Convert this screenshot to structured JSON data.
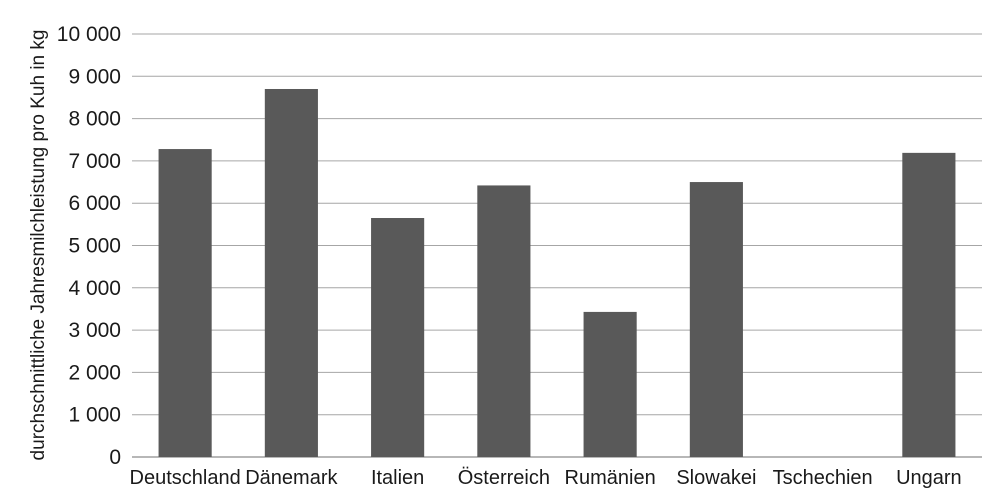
{
  "chart_data": {
    "type": "bar",
    "title": "",
    "xlabel": "",
    "ylabel": "durchschnittliche Jahresmilchleistung pro Kuh in kg",
    "categories": [
      "Deutschland",
      "Dänemark",
      "Italien",
      "Österreich",
      "Rumänien",
      "Slowakei",
      "Tschechien",
      "Ungarn"
    ],
    "values": [
      7280,
      8700,
      5650,
      6420,
      3430,
      6500,
      null,
      7190
    ],
    "ylim": [
      0,
      10000
    ],
    "yticks": [
      0,
      1000,
      2000,
      3000,
      4000,
      5000,
      6000,
      7000,
      8000,
      9000,
      10000
    ],
    "ytick_labels": [
      "0",
      "1 000",
      "2 000",
      "3 000",
      "4 000",
      "5 000",
      "6 000",
      "7 000",
      "8 000",
      "9 000",
      "10 000"
    ],
    "grid": true,
    "legend": "none",
    "bar_color": "#595959",
    "grid_color": "#a6a6a6"
  }
}
